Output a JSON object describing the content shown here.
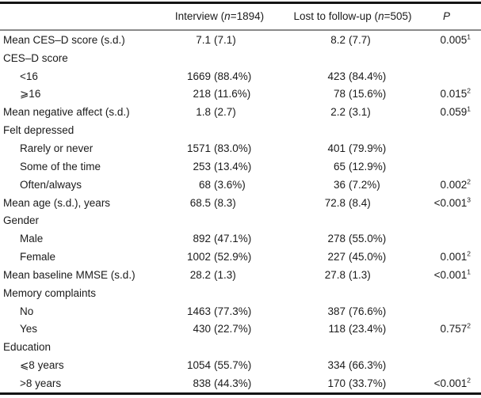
{
  "table": {
    "colors": {
      "background": "#ffffff",
      "text": "#1b1b1b",
      "rule_dark": "#141414",
      "rule_gray": "#8a8a8a"
    },
    "header": {
      "label_column": "",
      "interview": {
        "pre": "Interview (",
        "n": "n",
        "post": "=1894)"
      },
      "lost_to_follow_up": {
        "pre": "Lost to follow-up (",
        "n": "n",
        "post": "=505)"
      },
      "p": "P"
    },
    "rows": [
      {
        "label": "Mean CES–D score (s.d.)",
        "indent": false,
        "interview": {
          "value": "7.1",
          "paren": "(7.1)"
        },
        "lost": {
          "value": "8.2",
          "paren": "(7.7)"
        },
        "p": {
          "value": "0.005",
          "sup": "1"
        }
      },
      {
        "label": "CES–D score",
        "indent": false,
        "interview": null,
        "lost": null,
        "p": null
      },
      {
        "label": "<16",
        "indent": true,
        "interview": {
          "value": "1669",
          "paren": "(88.4%)"
        },
        "lost": {
          "value": "423",
          "paren": "(84.4%)"
        },
        "p": null
      },
      {
        "label": "⩾16",
        "indent": true,
        "interview": {
          "value": "218",
          "paren": "(11.6%)"
        },
        "lost": {
          "value": "78",
          "paren": "(15.6%)"
        },
        "p": {
          "value": "0.015",
          "sup": "2"
        }
      },
      {
        "label": "Mean negative affect (s.d.)",
        "indent": false,
        "interview": {
          "value": "1.8",
          "paren": "(2.7)"
        },
        "lost": {
          "value": "2.2",
          "paren": "(3.1)"
        },
        "p": {
          "value": "0.059",
          "sup": "1"
        }
      },
      {
        "label": "Felt depressed",
        "indent": false,
        "interview": null,
        "lost": null,
        "p": null
      },
      {
        "label": "Rarely or never",
        "indent": true,
        "interview": {
          "value": "1571",
          "paren": "(83.0%)"
        },
        "lost": {
          "value": "401",
          "paren": "(79.9%)"
        },
        "p": null
      },
      {
        "label": "Some of the time",
        "indent": true,
        "interview": {
          "value": "253",
          "paren": "(13.4%)"
        },
        "lost": {
          "value": "65",
          "paren": "(12.9%)"
        },
        "p": null
      },
      {
        "label": "Often/always",
        "indent": true,
        "interview": {
          "value": "68",
          "paren": "(3.6%)"
        },
        "lost": {
          "value": "36",
          "paren": "(7.2%)"
        },
        "p": {
          "value": "0.002",
          "sup": "2"
        }
      },
      {
        "label": "Mean age (s.d.), years",
        "indent": false,
        "interview": {
          "value": "68.5",
          "paren": "(8.3)"
        },
        "lost": {
          "value": "72.8",
          "paren": "(8.4)"
        },
        "p": {
          "value": "<0.001",
          "sup": "3"
        }
      },
      {
        "label": "Gender",
        "indent": false,
        "interview": null,
        "lost": null,
        "p": null
      },
      {
        "label": "Male",
        "indent": true,
        "interview": {
          "value": "892",
          "paren": "(47.1%)"
        },
        "lost": {
          "value": "278",
          "paren": "(55.0%)"
        },
        "p": null
      },
      {
        "label": "Female",
        "indent": true,
        "interview": {
          "value": "1002",
          "paren": "(52.9%)"
        },
        "lost": {
          "value": "227",
          "paren": "(45.0%)"
        },
        "p": {
          "value": "0.001",
          "sup": "2"
        }
      },
      {
        "label": "Mean baseline MMSE (s.d.)",
        "indent": false,
        "interview": {
          "value": "28.2",
          "paren": "(1.3)"
        },
        "lost": {
          "value": "27.8",
          "paren": "(1.3)"
        },
        "p": {
          "value": "<0.001",
          "sup": "1"
        }
      },
      {
        "label": "Memory complaints",
        "indent": false,
        "interview": null,
        "lost": null,
        "p": null
      },
      {
        "label": "No",
        "indent": true,
        "interview": {
          "value": "1463",
          "paren": "(77.3%)"
        },
        "lost": {
          "value": "387",
          "paren": "(76.6%)"
        },
        "p": null
      },
      {
        "label": "Yes",
        "indent": true,
        "interview": {
          "value": "430",
          "paren": "(22.7%)"
        },
        "lost": {
          "value": "118",
          "paren": "(23.4%)"
        },
        "p": {
          "value": "0.757",
          "sup": "2"
        }
      },
      {
        "label": "Education",
        "indent": false,
        "interview": null,
        "lost": null,
        "p": null
      },
      {
        "label": "⩽8 years",
        "indent": true,
        "interview": {
          "value": "1054",
          "paren": "(55.7%)"
        },
        "lost": {
          "value": "334",
          "paren": "(66.3%)"
        },
        "p": null
      },
      {
        "label": ">8 years",
        "indent": true,
        "interview": {
          "value": "838",
          "paren": "(44.3%)"
        },
        "lost": {
          "value": "170",
          "paren": "(33.7%)"
        },
        "p": {
          "value": "<0.001",
          "sup": "2"
        }
      }
    ]
  }
}
